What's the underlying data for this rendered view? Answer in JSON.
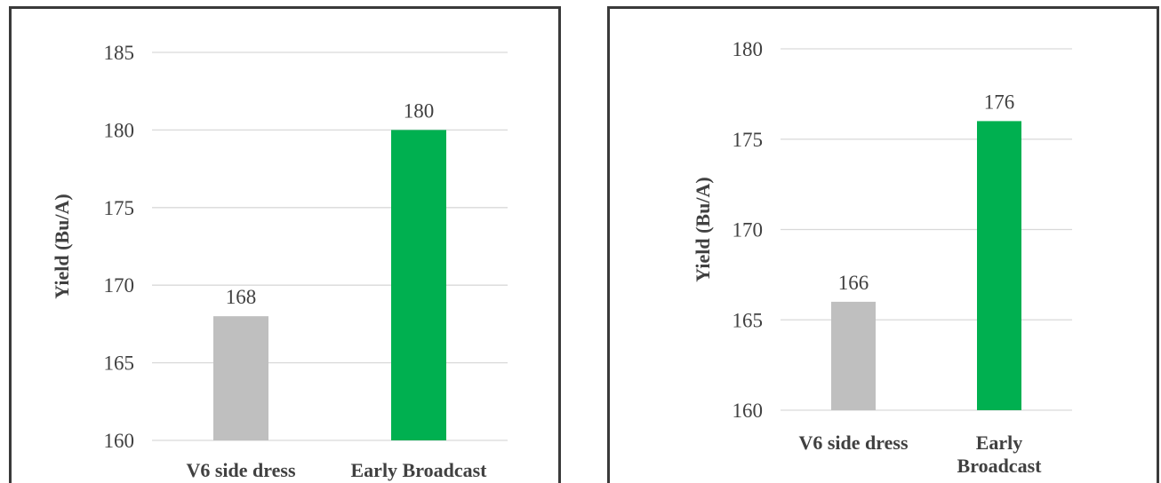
{
  "chart_data": [
    {
      "type": "bar",
      "categories": [
        "V6 side dress",
        "Early Broadcast"
      ],
      "values": [
        168,
        180
      ],
      "colors": [
        "#bfbfbf",
        "#00b050"
      ],
      "data_labels": [
        "168",
        "180"
      ],
      "ylabel": "Yield (Bu/A)",
      "yticks": [
        "160",
        "165",
        "170",
        "175",
        "180",
        "185"
      ],
      "ylim": [
        160,
        185
      ],
      "grid": true
    },
    {
      "type": "bar",
      "categories": [
        "V6 side dress",
        "Early Broadcast"
      ],
      "category_lines": [
        [
          "V6 side dress"
        ],
        [
          "Early",
          "Broadcast"
        ]
      ],
      "values": [
        166,
        176
      ],
      "colors": [
        "#bfbfbf",
        "#00b050"
      ],
      "data_labels": [
        "166",
        "176"
      ],
      "ylabel": "Yield (Bu/A)",
      "yticks": [
        "160",
        "165",
        "170",
        "175",
        "180"
      ],
      "ylim": [
        160,
        180
      ],
      "grid": true
    }
  ]
}
